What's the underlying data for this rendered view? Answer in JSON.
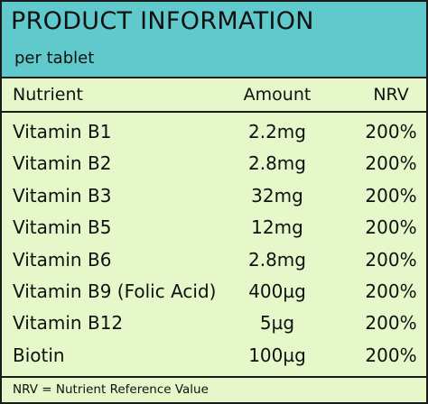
{
  "header": {
    "title": "PRODUCT INFORMATION",
    "subtitle": "per tablet"
  },
  "columns": {
    "nutrient": "Nutrient",
    "amount": "Amount",
    "nrv": "NRV"
  },
  "rows": [
    {
      "nutrient": "Vitamin B1",
      "amount": "2.2mg",
      "nrv": "200%"
    },
    {
      "nutrient": "Vitamin B2",
      "amount": "2.8mg",
      "nrv": "200%"
    },
    {
      "nutrient": "Vitamin B3",
      "amount": "32mg",
      "nrv": "200%"
    },
    {
      "nutrient": "Vitamin B5",
      "amount": "12mg",
      "nrv": "200%"
    },
    {
      "nutrient": "Vitamin B6",
      "amount": "2.8mg",
      "nrv": "200%"
    },
    {
      "nutrient": "Vitamin B9 (Folic Acid)",
      "amount": "400µg",
      "nrv": "200%"
    },
    {
      "nutrient": "Vitamin B12",
      "amount": "5µg",
      "nrv": "200%"
    },
    {
      "nutrient": "Biotin",
      "amount": "100µg",
      "nrv": "200%"
    }
  ],
  "footer": {
    "note": "NRV = Nutrient Reference Value"
  },
  "colors": {
    "header_bg": "#5fc9cc",
    "body_bg": "#e6f7c9",
    "border": "#1a1a1a"
  }
}
